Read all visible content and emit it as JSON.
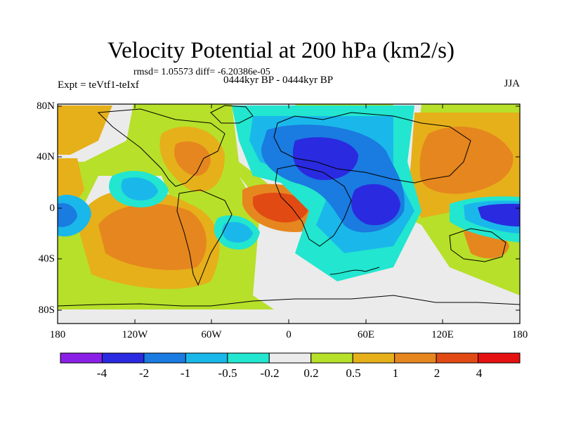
{
  "title": "Velocity Potential at 200 hPa (km2/s)",
  "stats": "rmsd= 1.05573 diff= -6.20386e-05",
  "experiment": "Expt = teVtf1-teIxf",
  "period": "0444kyr BP - 0444kyr BP",
  "season": "JJA",
  "lat_labels": [
    "80N",
    "40N",
    "0",
    "40S",
    "80S"
  ],
  "lon_labels": [
    "180",
    "120W",
    "60W",
    "0",
    "60E",
    "120E",
    "180"
  ],
  "colorbar": {
    "labels": [
      "-4",
      "-2",
      "-1",
      "-0.5",
      "-0.2",
      "0.2",
      "0.5",
      "1",
      "2",
      "4"
    ],
    "colors": [
      "#8a20e8",
      "#2a2ae0",
      "#1a7be0",
      "#1ab8ea",
      "#22e6cf",
      "#ebebeb",
      "#b7e02a",
      "#e6b01a",
      "#e6861f",
      "#e24a14",
      "#e51010"
    ]
  },
  "map_colors": {
    "blue": "#2a2ae0",
    "mid_blue": "#1a7be0",
    "light_blue": "#1ab8ea",
    "cyan": "#22e6cf",
    "grey": "#ebebeb",
    "lime": "#b7e02a",
    "amber": "#e6b01a",
    "orange": "#e6861f",
    "red": "#e24a14"
  }
}
